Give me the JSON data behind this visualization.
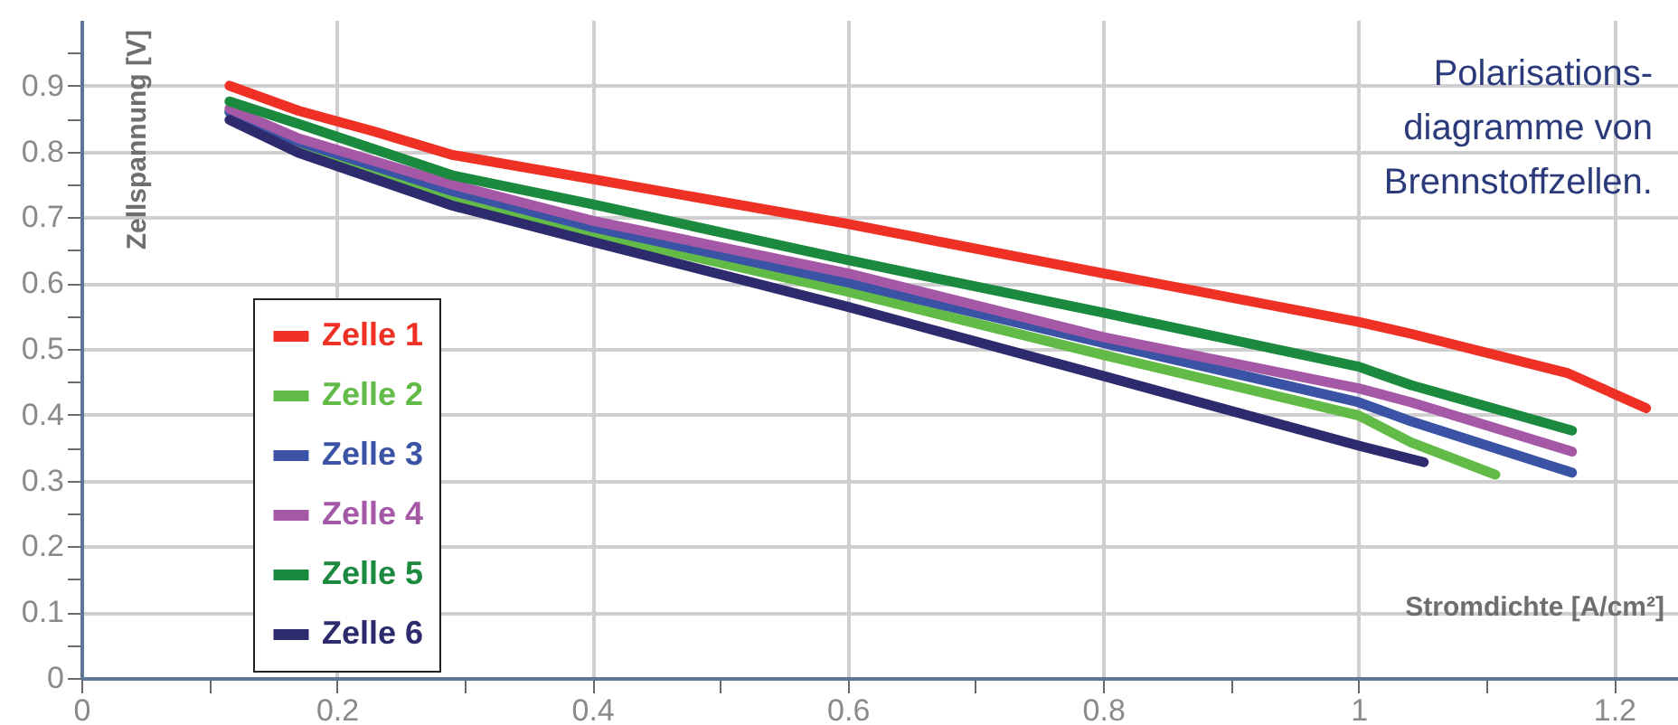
{
  "chart_data": {
    "type": "line",
    "xlabel": "Stromdichte [A/cm²]",
    "ylabel": "Zellspannung [V]",
    "annotations": [
      "Polarisations-\ndiagramme von\nBrennstoffzellen."
    ],
    "xlim": [
      0,
      1.25
    ],
    "ylim": [
      0,
      1
    ],
    "xticks": [
      0,
      {
        "value": 0.1,
        "label": null
      },
      0.2,
      {
        "value": 0.3,
        "label": null
      },
      0.4,
      {
        "value": 0.5,
        "label": null
      },
      0.6,
      {
        "value": 0.7,
        "label": null
      },
      0.8,
      {
        "value": 0.9,
        "label": null
      },
      1,
      {
        "value": 1.1,
        "label": null
      },
      1.2
    ],
    "yticks": [
      0,
      {
        "value": 0.05,
        "label": null
      },
      0.1,
      {
        "value": 0.15,
        "label": null
      },
      0.2,
      {
        "value": 0.25,
        "label": null
      },
      0.3,
      {
        "value": 0.35,
        "label": null
      },
      0.4,
      {
        "value": 0.45,
        "label": null
      },
      0.5,
      {
        "value": 0.55,
        "label": null
      },
      0.6,
      {
        "value": 0.65,
        "label": null
      },
      0.7,
      {
        "value": 0.75,
        "label": null
      },
      0.8,
      {
        "value": 0.85,
        "label": null
      },
      0.9,
      {
        "value": 0.95,
        "label": null
      }
    ],
    "grid": true,
    "legend": "left",
    "marker": "none",
    "line_style": "solid",
    "series": [
      {
        "name": "Zelle 1",
        "color": "#ee3124",
        "x": [
          0.116,
          0.17,
          0.23,
          0.29,
          0.4,
          0.6,
          0.8,
          1.0,
          1.041,
          1.164,
          1.225
        ],
        "values": [
          0.9,
          0.862,
          0.83,
          0.795,
          0.758,
          0.69,
          0.615,
          0.541,
          0.523,
          0.463,
          0.41
        ]
      },
      {
        "name": "Zelle 2",
        "color": "#62bb46",
        "x": [
          0.116,
          0.17,
          0.29,
          0.4,
          0.6,
          0.8,
          1.0,
          1.041,
          1.107
        ],
        "values": [
          0.86,
          0.81,
          0.73,
          0.675,
          0.587,
          0.491,
          0.399,
          0.358,
          0.309
        ]
      },
      {
        "name": "Zelle 3",
        "color": "#3a53a4",
        "x": [
          0.116,
          0.17,
          0.29,
          0.4,
          0.6,
          0.8,
          1.0,
          1.041,
          1.167
        ],
        "values": [
          0.86,
          0.815,
          0.74,
          0.685,
          0.601,
          0.509,
          0.419,
          0.39,
          0.312
        ]
      },
      {
        "name": "Zelle 4",
        "color": "#a558a6",
        "x": [
          0.116,
          0.17,
          0.29,
          0.4,
          0.6,
          0.8,
          1.0,
          1.041,
          1.167
        ],
        "values": [
          0.865,
          0.82,
          0.75,
          0.695,
          0.615,
          0.518,
          0.44,
          0.419,
          0.344
        ]
      },
      {
        "name": "Zelle 5",
        "color": "#1b8a3f",
        "x": [
          0.116,
          0.17,
          0.29,
          0.4,
          0.6,
          0.8,
          1.0,
          1.041,
          1.167
        ],
        "values": [
          0.876,
          0.842,
          0.764,
          0.72,
          0.635,
          0.555,
          0.473,
          0.445,
          0.376
        ]
      },
      {
        "name": "Zelle 6",
        "color": "#2e2a6e",
        "x": [
          0.116,
          0.17,
          0.29,
          0.4,
          0.6,
          0.8,
          1.0,
          1.051
        ],
        "values": [
          0.848,
          0.798,
          0.718,
          0.663,
          0.564,
          0.459,
          0.353,
          0.328
        ]
      }
    ]
  }
}
